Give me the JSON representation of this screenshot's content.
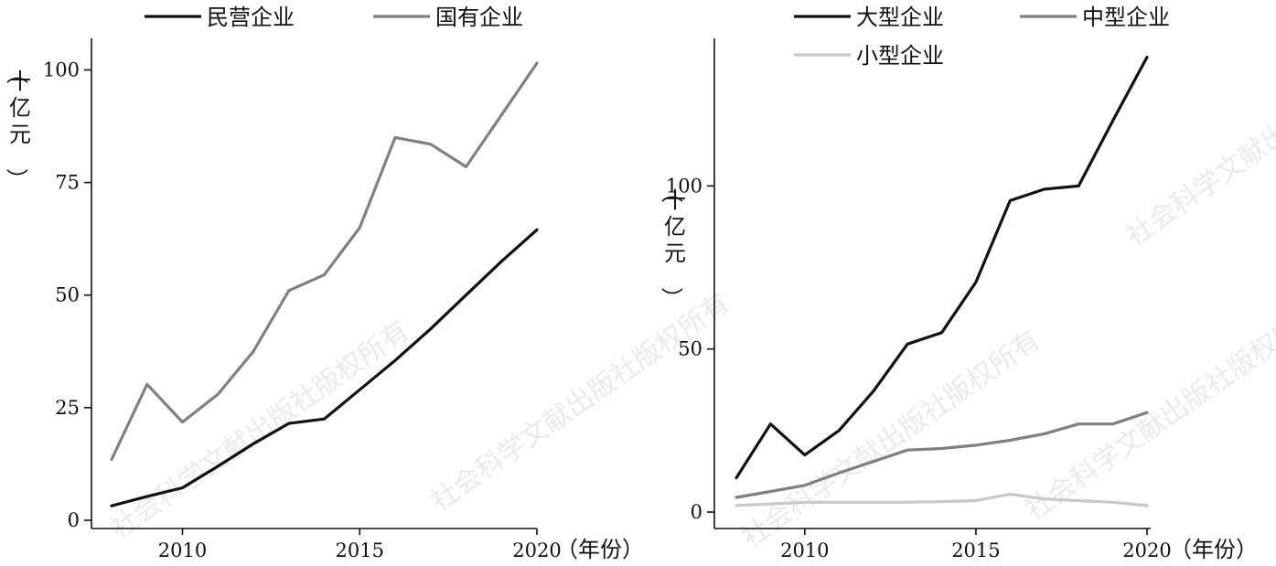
{
  "watermark": "社会科学文献出版社版权所有",
  "chart_data": [
    {
      "type": "line",
      "xlabel": "（年份）",
      "ylabel": "（十亿元）",
      "xlim": [
        2008,
        2020
      ],
      "ylim": [
        0,
        107
      ],
      "x_ticks": [
        2010,
        2015,
        2020
      ],
      "y_ticks": [
        0,
        25,
        50,
        75,
        100
      ],
      "legend": "top",
      "grid": false,
      "x": [
        2008,
        2009,
        2010,
        2011,
        2012,
        2013,
        2014,
        2015,
        2016,
        2017,
        2018,
        2019,
        2020
      ],
      "series": [
        {
          "name": "民营企业",
          "color": "#111111",
          "values": [
            3.2,
            5.3,
            7.2,
            12,
            17,
            21.5,
            22.5,
            29,
            35.5,
            42.5,
            50,
            57.5,
            64.5
          ]
        },
        {
          "name": "国有企业",
          "color": "#808080",
          "values": [
            13.5,
            30.2,
            21.8,
            28,
            37.5,
            51,
            54.5,
            65,
            85,
            83.5,
            78.5,
            90,
            101.5
          ]
        }
      ]
    },
    {
      "type": "line",
      "xlabel": "（年份）",
      "ylabel": "（十亿元）",
      "xlim": [
        2008,
        2020
      ],
      "ylim": [
        0,
        143
      ],
      "x_ticks": [
        2010,
        2015,
        2020
      ],
      "y_ticks": [
        0,
        50,
        100
      ],
      "legend": "top",
      "grid": false,
      "x": [
        2008,
        2009,
        2010,
        2011,
        2012,
        2013,
        2014,
        2015,
        2016,
        2017,
        2018,
        2019,
        2020
      ],
      "series": [
        {
          "name": "大型企业",
          "color": "#111111",
          "values": [
            10.5,
            27,
            17.5,
            25,
            37,
            51.5,
            55,
            70.5,
            95.5,
            99,
            100,
            120,
            139.5
          ]
        },
        {
          "name": "中型企业",
          "color": "#808080",
          "values": [
            4.5,
            6.3,
            8.2,
            12,
            15.5,
            19,
            19.5,
            20.5,
            22,
            24,
            27,
            27,
            30.5
          ]
        },
        {
          "name": "小型企业",
          "color": "#c8c8c8",
          "values": [
            2,
            2.5,
            3,
            3,
            3,
            3,
            3.2,
            3.5,
            5.5,
            4,
            3.5,
            3,
            2
          ]
        }
      ]
    }
  ]
}
